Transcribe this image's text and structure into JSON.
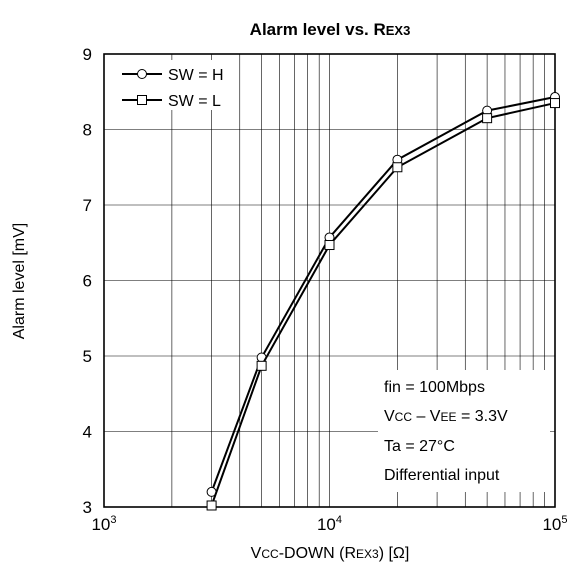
{
  "chart_data": {
    "type": "line",
    "title_parts": [
      "Alarm level vs. R",
      "EX3"
    ],
    "xlabel_parts": [
      "V",
      "CC",
      "-DOWN (R",
      "EX3",
      ") [Ω]"
    ],
    "ylabel": "Alarm level [mV]",
    "x_scale": "log",
    "xlim": [
      1000,
      100000
    ],
    "ylim": [
      3,
      9
    ],
    "x_ticks": [
      {
        "base": "10",
        "exp": "3"
      },
      {
        "base": "10",
        "exp": "4"
      },
      {
        "base": "10",
        "exp": "5"
      }
    ],
    "y_ticks": [
      "3",
      "4",
      "5",
      "6",
      "7",
      "8",
      "9"
    ],
    "grid": true,
    "legend_position": "top-left",
    "series": [
      {
        "name": "SW = H",
        "marker": "circle",
        "x": [
          3000,
          5000,
          10000,
          20000,
          50000,
          100000
        ],
        "y": [
          3.2,
          4.98,
          6.57,
          7.6,
          8.25,
          8.43
        ]
      },
      {
        "name": "SW = L",
        "marker": "square",
        "x": [
          3000,
          5000,
          10000,
          20000,
          50000,
          100000
        ],
        "y": [
          3.02,
          4.87,
          6.47,
          7.5,
          8.15,
          8.35
        ]
      }
    ],
    "annotation_lines": [
      {
        "id": "fin",
        "parts": [
          "fin = 100Mbps"
        ]
      },
      {
        "id": "vcc",
        "parts": [
          "V",
          "CC",
          " – V",
          "EE",
          " = 3.3V"
        ]
      },
      {
        "id": "ta",
        "parts": [
          "Ta = 27°C"
        ]
      },
      {
        "id": "diff",
        "parts": [
          "Differential input"
        ]
      }
    ]
  }
}
